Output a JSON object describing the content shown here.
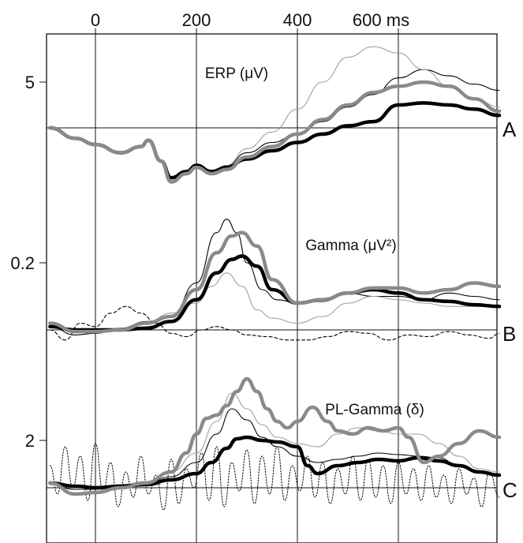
{
  "chart_data": {
    "type": "line",
    "x_axis": {
      "tick_values": [
        0,
        200,
        400,
        600
      ],
      "tick_labels": [
        "0",
        "200",
        "400",
        "600 ms"
      ],
      "xlim": [
        -90,
        800
      ],
      "grid": true
    },
    "panels": [
      {
        "letter": "A",
        "title": "ERP (μV)",
        "ytick_value": 5,
        "ytick_label": "5",
        "series": [
          {
            "style": "thick-black",
            "x": [
              -90,
              -40,
              0,
              50,
              90,
              105,
              130,
              150,
              180,
              200,
              230,
              260,
              300,
              350,
              400,
              450,
              500,
              550,
              600,
              650,
              700,
              750,
              800
            ],
            "y": [
              3.9,
              3.65,
              3.5,
              3.3,
              3.45,
              3.6,
              3.1,
              2.7,
              2.85,
              3.0,
              2.85,
              2.95,
              3.15,
              3.35,
              3.55,
              3.75,
              3.95,
              4.05,
              4.45,
              4.5,
              4.45,
              4.35,
              4.2
            ]
          },
          {
            "style": "thick-gray",
            "x": [
              -90,
              -40,
              0,
              50,
              90,
              105,
              130,
              150,
              180,
              200,
              230,
              260,
              300,
              350,
              400,
              450,
              500,
              550,
              600,
              650,
              700,
              750,
              800
            ],
            "y": [
              3.9,
              3.65,
              3.5,
              3.3,
              3.45,
              3.6,
              3.1,
              2.6,
              2.8,
              2.95,
              2.8,
              2.9,
              3.2,
              3.45,
              3.75,
              4.1,
              4.45,
              4.75,
              4.9,
              5.0,
              4.9,
              4.6,
              4.3
            ]
          },
          {
            "style": "thin-black",
            "x": [
              -90,
              -40,
              0,
              50,
              90,
              105,
              130,
              150,
              180,
              200,
              230,
              260,
              300,
              350,
              400,
              450,
              500,
              550,
              600,
              650,
              700,
              750,
              800
            ],
            "y": [
              3.9,
              3.65,
              3.5,
              3.3,
              3.45,
              3.6,
              3.1,
              2.7,
              2.85,
              3.0,
              2.85,
              3.0,
              3.3,
              3.55,
              3.75,
              4.05,
              4.4,
              4.7,
              5.1,
              5.3,
              5.15,
              4.95,
              4.8
            ]
          },
          {
            "style": "thin-gray",
            "x": [
              -90,
              -40,
              0,
              50,
              90,
              105,
              130,
              150,
              180,
              200,
              230,
              260,
              300,
              350,
              400,
              450,
              500,
              550,
              600,
              650,
              700,
              750,
              800
            ],
            "y": [
              3.9,
              3.65,
              3.5,
              3.3,
              3.45,
              3.6,
              3.1,
              2.7,
              2.85,
              3.0,
              2.85,
              3.0,
              3.4,
              3.8,
              4.35,
              5.0,
              5.6,
              5.85,
              5.7,
              5.3,
              4.9,
              4.6,
              4.4
            ]
          }
        ]
      },
      {
        "letter": "B",
        "title": "Gamma (μV²)",
        "ytick_value": 0.2,
        "ytick_label": "0.2",
        "series": [
          {
            "style": "thick-black",
            "x": [
              -90,
              -40,
              0,
              50,
              100,
              150,
              200,
              240,
              270,
              290,
              320,
              350,
              400,
              450,
              500,
              550,
              600,
              650,
              700,
              750,
              800
            ],
            "y": [
              0.01,
              0.0,
              0.0,
              0.0,
              0.005,
              0.025,
              0.09,
              0.17,
              0.21,
              0.22,
              0.19,
              0.12,
              0.08,
              0.09,
              0.11,
              0.12,
              0.11,
              0.09,
              0.085,
              0.075,
              0.07
            ]
          },
          {
            "style": "thick-gray",
            "x": [
              -90,
              -40,
              0,
              50,
              100,
              150,
              200,
              240,
              270,
              290,
              320,
              350,
              400,
              450,
              500,
              550,
              600,
              650,
              700,
              750,
              800
            ],
            "y": [
              0.02,
              -0.005,
              -0.005,
              0.0,
              0.02,
              0.04,
              0.12,
              0.23,
              0.28,
              0.29,
              0.25,
              0.15,
              0.08,
              0.09,
              0.11,
              0.125,
              0.125,
              0.11,
              0.12,
              0.14,
              0.13
            ]
          },
          {
            "style": "thin-black",
            "x": [
              -90,
              -40,
              0,
              50,
              100,
              150,
              200,
              240,
              260,
              280,
              300,
              330,
              360,
              400,
              450,
              500,
              550,
              600,
              650,
              700,
              750,
              800
            ],
            "y": [
              0.01,
              -0.015,
              -0.01,
              0.005,
              0.025,
              0.04,
              0.14,
              0.29,
              0.33,
              0.29,
              0.2,
              0.12,
              0.09,
              0.08,
              0.085,
              0.11,
              0.1,
              0.1,
              0.09,
              0.11,
              0.1,
              0.09
            ]
          },
          {
            "style": "thin-gray",
            "x": [
              -90,
              -40,
              0,
              50,
              100,
              150,
              200,
              230,
              260,
              290,
              320,
              350,
              400,
              450,
              500,
              550,
              600,
              650,
              700,
              750,
              800
            ],
            "y": [
              0.01,
              -0.005,
              -0.005,
              0.0,
              0.02,
              0.05,
              0.08,
              0.13,
              0.17,
              0.13,
              0.06,
              0.035,
              0.02,
              0.04,
              0.08,
              0.1,
              0.09,
              0.08,
              0.07,
              0.07,
              0.07
            ]
          },
          {
            "style": "dashed-black",
            "x": [
              -90,
              -60,
              -30,
              0,
              30,
              60,
              90,
              120,
              150,
              180,
              210,
              240,
              270,
              300,
              340,
              380,
              420,
              460,
              500,
              540,
              580,
              620,
              660,
              700,
              740,
              780,
              800
            ],
            "y": [
              0.0,
              -0.03,
              0.02,
              0.01,
              0.05,
              0.07,
              0.05,
              0.02,
              -0.01,
              -0.02,
              0.0,
              0.01,
              0.0,
              -0.015,
              -0.02,
              -0.03,
              -0.03,
              -0.02,
              -0.005,
              -0.01,
              -0.03,
              -0.015,
              -0.02,
              -0.005,
              -0.015,
              -0.025,
              -0.01
            ]
          }
        ]
      },
      {
        "letter": "C",
        "title": "PL-Gamma (δ)",
        "ytick_value": 2,
        "ytick_label": "2",
        "series": [
          {
            "style": "thick-black",
            "x": [
              -90,
              -40,
              0,
              50,
              100,
              150,
              200,
              230,
              260,
              280,
              300,
              330,
              360,
              400,
              420,
              440,
              480,
              520,
              560,
              600,
              640,
              680,
              720,
              760,
              800
            ],
            "y": [
              0.65,
              0.55,
              0.5,
              0.55,
              0.6,
              0.75,
              0.95,
              1.3,
              1.75,
              2.05,
              2.1,
              2.0,
              1.95,
              1.8,
              1.2,
              0.95,
              1.2,
              1.3,
              1.4,
              1.35,
              1.45,
              1.35,
              1.2,
              1.0,
              0.9
            ]
          },
          {
            "style": "thick-gray",
            "x": [
              -90,
              -40,
              0,
              50,
              100,
              150,
              180,
              200,
              220,
              240,
              260,
              280,
              300,
              320,
              340,
              360,
              380,
              400,
              430,
              460,
              480,
              510,
              540,
              570,
              600,
              620,
              650,
              680,
              720,
              760,
              800
            ],
            "y": [
              0.65,
              0.3,
              0.35,
              0.5,
              0.65,
              1.0,
              1.6,
              2.2,
              2.7,
              2.8,
              3.1,
              3.55,
              3.95,
              3.55,
              3.0,
              2.6,
              2.4,
              2.6,
              3.05,
              2.6,
              2.3,
              2.2,
              2.4,
              2.3,
              2.4,
              2.1,
              1.3,
              1.5,
              1.9,
              2.3,
              2.1
            ]
          },
          {
            "style": "thin-black",
            "x": [
              -90,
              -40,
              0,
              50,
              100,
              150,
              200,
              240,
              270,
              300,
              330,
              360,
              400,
              440,
              480,
              520,
              560,
              600,
              640,
              680,
              720,
              760,
              800
            ],
            "y": [
              0.6,
              0.45,
              0.45,
              0.55,
              0.65,
              0.85,
              1.3,
              2.2,
              3.0,
              2.65,
              2.1,
              1.8,
              1.5,
              1.3,
              1.4,
              1.5,
              1.6,
              1.55,
              1.5,
              1.45,
              1.2,
              1.0,
              0.9
            ]
          },
          {
            "style": "thin-gray",
            "x": [
              -90,
              -40,
              0,
              50,
              100,
              150,
              200,
              240,
              270,
              300,
              330,
              360,
              400,
              440,
              480,
              520,
              560,
              600,
              640,
              680,
              720,
              760,
              800
            ],
            "y": [
              0.6,
              0.5,
              0.5,
              0.6,
              0.7,
              1.0,
              1.6,
              2.6,
              3.5,
              3.0,
              2.5,
              2.1,
              1.9,
              1.8,
              2.2,
              2.4,
              2.3,
              2.2,
              2.2,
              1.9,
              1.5,
              1.1,
              1.0
            ]
          },
          {
            "style": "dotted-black",
            "x": [
              -90,
              -75,
              -60,
              -45,
              -30,
              -15,
              0,
              15,
              30,
              45,
              60,
              75,
              90,
              105,
              120,
              135,
              150,
              165,
              180,
              195,
              210,
              225,
              240,
              255,
              270,
              285,
              300,
              315,
              330,
              345,
              360,
              375,
              390,
              405,
              420,
              435,
              450,
              465,
              480,
              495,
              510,
              525,
              540,
              555,
              570,
              585,
              600,
              615,
              630,
              645,
              660,
              675,
              690,
              705,
              720,
              735,
              750,
              765,
              780,
              800
            ],
            "y": [
              1.2,
              0.3,
              1.8,
              0.5,
              1.5,
              0.1,
              1.9,
              0.4,
              1.3,
              -0.1,
              1.0,
              0.2,
              1.5,
              0.3,
              0.9,
              -0.2,
              1.4,
              0.0,
              1.1,
              0.5,
              1.6,
              0.1,
              1.8,
              -0.1,
              1.3,
              0.4,
              1.7,
              0.0,
              1.5,
              0.3,
              1.8,
              0.1,
              1.2,
              0.4,
              1.5,
              0.2,
              1.3,
              0.0,
              1.1,
              0.3,
              1.5,
              0.1,
              1.4,
              0.2,
              1.2,
              0.0,
              1.3,
              0.3,
              1.1,
              0.1,
              1.2,
              0.2,
              0.9,
              0.0,
              1.1,
              0.3,
              0.8,
              -0.1,
              1.0,
              0.2
            ]
          }
        ]
      }
    ]
  }
}
